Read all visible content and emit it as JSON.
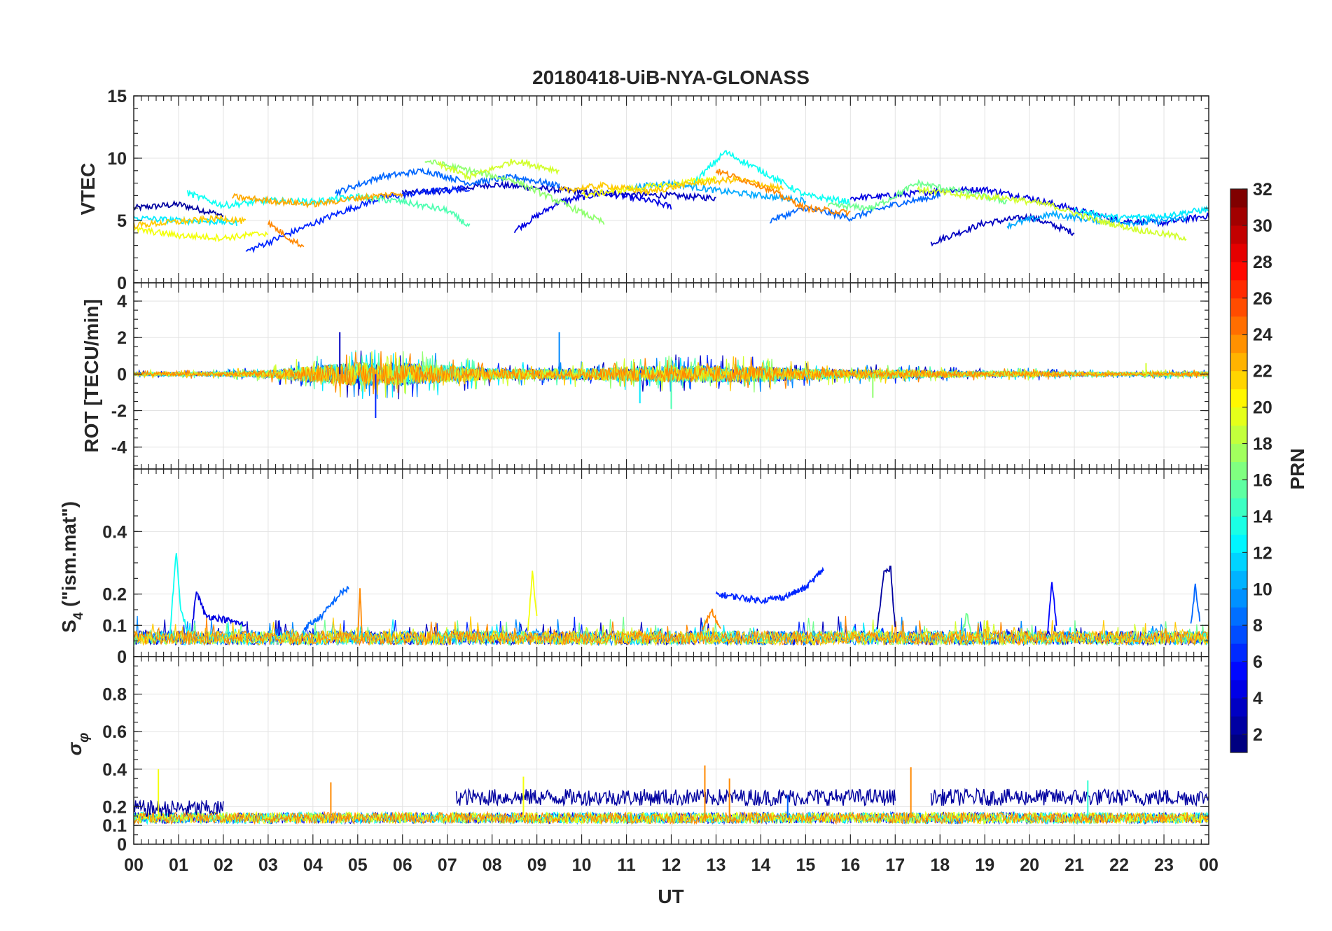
{
  "chart_data": {
    "type": "line",
    "title": "20180418-UiB-NYA-GLONASS",
    "xlabel": "UT",
    "x_range_hours": [
      0,
      24
    ],
    "x_tick_labels": [
      "00",
      "01",
      "02",
      "03",
      "04",
      "05",
      "06",
      "07",
      "08",
      "09",
      "10",
      "11",
      "12",
      "13",
      "14",
      "15",
      "16",
      "17",
      "18",
      "19",
      "20",
      "21",
      "22",
      "23",
      "00"
    ],
    "colormap": "jet",
    "colorbar": {
      "label": "PRN",
      "range": [
        1,
        32
      ],
      "tick_labels": [
        "2",
        "4",
        "6",
        "8",
        "10",
        "12",
        "14",
        "16",
        "18",
        "20",
        "22",
        "24",
        "26",
        "28",
        "30",
        "32"
      ]
    },
    "panels": [
      {
        "id": "vtec",
        "ylabel": "VTEC",
        "ylim": [
          0,
          15
        ],
        "y_tick_labels": [
          "0",
          "5",
          "10",
          "15"
        ],
        "series": [
          {
            "prn": 2,
            "x": [
              0,
              1,
              2
            ],
            "y": [
              6.0,
              6.3,
              5.4
            ]
          },
          {
            "prn": 3,
            "x": [
              6,
              7,
              8,
              9,
              10,
              11,
              12,
              13
            ],
            "y": [
              7.2,
              7.4,
              7.9,
              7.6,
              7.3,
              7.1,
              7.0,
              6.8
            ]
          },
          {
            "prn": 3,
            "x": [
              17.8,
              19,
              20,
              21
            ],
            "y": [
              3.2,
              4.8,
              5.3,
              4.0
            ]
          },
          {
            "prn": 4,
            "x": [
              8.5,
              9.5,
              10.5,
              11.5,
              12
            ],
            "y": [
              4.2,
              6.5,
              7.2,
              6.6,
              6.1
            ]
          },
          {
            "prn": 4,
            "x": [
              16,
              17,
              18,
              19,
              20,
              21,
              22,
              23,
              24
            ],
            "y": [
              6.8,
              7.0,
              7.4,
              7.5,
              6.8,
              5.9,
              5.0,
              4.8,
              5.4
            ]
          },
          {
            "prn": 6,
            "x": [
              2.5,
              3.5,
              4.5,
              5.5,
              6.5,
              7.5
            ],
            "y": [
              2.5,
              4.0,
              5.5,
              6.8,
              7.3,
              7.6
            ]
          },
          {
            "prn": 8,
            "x": [
              4.5,
              5.5,
              6.5,
              7.5,
              8.5,
              9.5
            ],
            "y": [
              7.2,
              8.5,
              9.0,
              8.0,
              8.5,
              7.8
            ]
          },
          {
            "prn": 8,
            "x": [
              14.2,
              15,
              16,
              17,
              18
            ],
            "y": [
              5.0,
              6.0,
              5.2,
              6.3,
              7.0
            ]
          },
          {
            "prn": 10,
            "x": [
              11,
              12,
              13,
              14,
              15
            ],
            "y": [
              7.6,
              8.0,
              7.4,
              7.0,
              6.6
            ]
          },
          {
            "prn": 10,
            "x": [
              19.5,
              20.5,
              21.5,
              22.5,
              23.5
            ],
            "y": [
              4.6,
              5.5,
              5.0,
              4.8,
              5.2
            ]
          },
          {
            "prn": 12,
            "x": [
              0,
              1,
              2,
              2.3
            ],
            "y": [
              5.2,
              5.0,
              4.9,
              4.8
            ]
          },
          {
            "prn": 12,
            "x": [
              21,
              22,
              23,
              24
            ],
            "y": [
              5.8,
              5.2,
              5.4,
              5.9
            ]
          },
          {
            "prn": 13,
            "x": [
              1.2,
              2,
              3,
              4,
              5
            ],
            "y": [
              7.2,
              6.2,
              6.6,
              6.5,
              6.9
            ]
          },
          {
            "prn": 13,
            "x": [
              12.5,
              13.2,
              14,
              15,
              16
            ],
            "y": [
              8.0,
              10.5,
              9.0,
              7.0,
              6.5
            ]
          },
          {
            "prn": 15,
            "x": [
              5,
              6,
              7,
              7.5
            ],
            "y": [
              6.9,
              6.5,
              5.8,
              4.5
            ]
          },
          {
            "prn": 16,
            "x": [
              15.5,
              16.5,
              17.5,
              18.5,
              19.5
            ],
            "y": [
              6.2,
              6.0,
              8.0,
              7.3,
              6.5
            ]
          },
          {
            "prn": 17,
            "x": [
              6.5,
              7.5,
              8.5,
              9.5,
              10.5
            ],
            "y": [
              9.8,
              9.0,
              8.2,
              6.5,
              4.8
            ]
          },
          {
            "prn": 19,
            "x": [
              6.8,
              7.5,
              8.5,
              9.5
            ],
            "y": [
              9.5,
              8.5,
              9.8,
              9.0
            ]
          },
          {
            "prn": 19,
            "x": [
              17.5,
              18.5,
              19.5,
              20.5,
              21.5,
              22.5,
              23.5
            ],
            "y": [
              7.5,
              7.0,
              6.8,
              6.2,
              5.0,
              4.2,
              3.6
            ]
          },
          {
            "prn": 20,
            "x": [
              0,
              1,
              2,
              3
            ],
            "y": [
              4.3,
              3.8,
              3.6,
              4.0
            ]
          },
          {
            "prn": 20,
            "x": [
              10,
              11,
              12,
              13
            ],
            "y": [
              7.0,
              7.5,
              7.9,
              8.4
            ]
          },
          {
            "prn": 22,
            "x": [
              0,
              1,
              2,
              2.5
            ],
            "y": [
              4.6,
              4.9,
              5.2,
              4.9
            ]
          },
          {
            "prn": 22,
            "x": [
              9.5,
              10.5,
              11.5,
              12.5,
              13.5,
              14.5
            ],
            "y": [
              7.4,
              7.8,
              7.3,
              8.0,
              8.3,
              7.5
            ]
          },
          {
            "prn": 23,
            "x": [
              2.2,
              3,
              4,
              5,
              6
            ],
            "y": [
              6.9,
              6.6,
              6.3,
              6.8,
              7.2
            ]
          },
          {
            "prn": 24,
            "x": [
              3,
              3.5,
              3.8
            ],
            "y": [
              4.8,
              3.5,
              2.9
            ]
          },
          {
            "prn": 24,
            "x": [
              13,
              14,
              15,
              16
            ],
            "y": [
              9.0,
              7.8,
              6.0,
              5.6
            ]
          }
        ]
      },
      {
        "id": "rot",
        "ylabel": "ROT [TECU/min]",
        "ylim": [
          -5.2,
          5
        ],
        "y_tick_labels": [
          "-4",
          "-2",
          "0",
          "2",
          "4"
        ],
        "noise_envelope": {
          "x": [
            0,
            2,
            3,
            4,
            5,
            6,
            7,
            8,
            9,
            10,
            11,
            12,
            13,
            14,
            15,
            16,
            17,
            18,
            19,
            20,
            21,
            22,
            23,
            24
          ],
          "amplitude": [
            0.12,
            0.15,
            0.25,
            0.6,
            0.8,
            0.8,
            0.6,
            0.4,
            0.35,
            0.4,
            0.5,
            0.6,
            0.6,
            0.55,
            0.4,
            0.3,
            0.3,
            0.25,
            0.2,
            0.2,
            0.15,
            0.12,
            0.15,
            0.15
          ]
        },
        "spikes": [
          {
            "x": 4.6,
            "y": 2.3
          },
          {
            "x": 5.4,
            "y": -2.4
          },
          {
            "x": 9.5,
            "y": 2.3
          },
          {
            "x": 11.3,
            "y": -1.6
          },
          {
            "x": 12.0,
            "y": -1.9
          },
          {
            "x": 16.5,
            "y": -1.3
          },
          {
            "x": 22.6,
            "y": 0.6
          }
        ]
      },
      {
        "id": "s4",
        "ylabel": "S4 (\"ism.mat\")",
        "ylabel_main": "S",
        "ylabel_sub": "4",
        "ylabel_rest": " (\"ism.mat\")",
        "ylim": [
          0,
          0.6
        ],
        "y_tick_labels": [
          "0",
          "0.1",
          "0.2",
          "0.4"
        ],
        "baseline_level": 0.06,
        "series": [
          {
            "prn": 13,
            "x": [
              0.8,
              0.95,
              1.05,
              1.2
            ],
            "y": [
              0.06,
              0.34,
              0.15,
              0.08
            ]
          },
          {
            "prn": 4,
            "x": [
              1.3,
              1.4,
              1.6,
              2.0,
              2.5
            ],
            "y": [
              0.09,
              0.21,
              0.13,
              0.12,
              0.1
            ]
          },
          {
            "prn": 8,
            "x": [
              3.8,
              4.2,
              4.6,
              4.8
            ],
            "y": [
              0.09,
              0.13,
              0.2,
              0.22
            ]
          },
          {
            "prn": 24,
            "x": [
              5.0,
              5.05,
              5.1
            ],
            "y": [
              0.06,
              0.21,
              0.06
            ]
          },
          {
            "prn": 20,
            "x": [
              8.8,
              8.9,
              9.0
            ],
            "y": [
              0.08,
              0.27,
              0.12
            ]
          },
          {
            "prn": 6,
            "x": [
              13.0,
              13.5,
              14.0,
              14.5,
              15.0,
              15.4
            ],
            "y": [
              0.2,
              0.19,
              0.18,
              0.19,
              0.22,
              0.28
            ]
          },
          {
            "prn": 2,
            "x": [
              16.6,
              16.75,
              16.9,
              17.0
            ],
            "y": [
              0.09,
              0.27,
              0.28,
              0.09
            ]
          },
          {
            "prn": 5,
            "x": [
              20.4,
              20.5,
              20.6
            ],
            "y": [
              0.08,
              0.24,
              0.1
            ]
          },
          {
            "prn": 8,
            "x": [
              23.6,
              23.7,
              23.8
            ],
            "y": [
              0.1,
              0.23,
              0.12
            ]
          },
          {
            "prn": 24,
            "x": [
              12.7,
              12.9,
              13.1
            ],
            "y": [
              0.08,
              0.15,
              0.08
            ]
          },
          {
            "prn": 16,
            "x": [
              18.5,
              18.6,
              18.7
            ],
            "y": [
              0.07,
              0.14,
              0.07
            ]
          }
        ]
      },
      {
        "id": "sigma_phi",
        "ylabel": "σφ",
        "ylabel_main": "σ",
        "ylabel_sub": "φ",
        "ylim": [
          0,
          1
        ],
        "y_tick_labels": [
          "0",
          "0.1",
          "0.2",
          "0.4",
          "0.6",
          "0.8"
        ],
        "baseline_level": 0.14,
        "elevated_band": {
          "x": [
            7.2,
            17.0,
            17.8,
            24
          ],
          "level": 0.25
        },
        "spikes": [
          {
            "x": 0.55,
            "y": 0.4
          },
          {
            "x": 4.4,
            "y": 0.33
          },
          {
            "x": 8.7,
            "y": 0.36
          },
          {
            "x": 12.75,
            "y": 0.42
          },
          {
            "x": 13.3,
            "y": 0.35
          },
          {
            "x": 17.35,
            "y": 0.41
          },
          {
            "x": 21.3,
            "y": 0.34
          },
          {
            "x": 14.6,
            "y": 0.26
          }
        ]
      }
    ]
  }
}
